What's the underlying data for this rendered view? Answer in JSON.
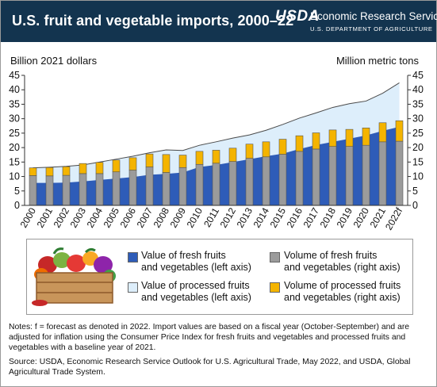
{
  "header": {
    "title": "U.S. fruit and vegetable imports, 2000–22",
    "agency_mark": "USDA",
    "agency_name": "Economic Research Service",
    "department": "U.S. DEPARTMENT OF AGRICULTURE",
    "bar_color": "#13344f"
  },
  "axes": {
    "left_label": "Billion 2021 dollars",
    "right_label": "Million metric tons"
  },
  "legend": {
    "fresh_value": "Value of fresh fruits and vegetables (left axis)",
    "processed_value": "Value of processed fruits and vegetables (left axis)",
    "fresh_volume": "Volume of fresh fruits and vegetables (right axis)",
    "processed_volume": "Volume of processed fruits and vegetables (right axis)",
    "fresh_value_line1": "Value of fresh fruits",
    "fresh_value_line2": "and vegetables (left axis)",
    "processed_value_line1": "Value of processed fruits",
    "processed_value_line2": "and vegetables (left axis)",
    "fresh_volume_line1": "Volume of fresh fruits",
    "fresh_volume_line2": "and vegetables (right axis)",
    "processed_volume_line1": "Volume of processed fruits",
    "processed_volume_line2": "and vegetables (right axis)"
  },
  "notes": {
    "note": "Notes: f = forecast as denoted in 2022. Import values are based on a fiscal year (October-September) and are adjusted for inflation using the Consumer Price Index for fresh fruits and vegetables and processed fruits and vegetables with a baseline year of 2021.",
    "source": "Source: USDA, Economic Research Service Outlook for U.S. Agricultural Trade, May 2022, and USDA, Global Agricultural Trade System."
  },
  "chart_data": {
    "type": "area",
    "title": "U.S. fruit and vegetable imports, 2000–22",
    "ylabel_left": "Billion 2021 dollars",
    "ylabel_right": "Million metric tons",
    "ylim_left": [
      0,
      45
    ],
    "ylim_right": [
      0,
      45
    ],
    "yticks": [
      0,
      5,
      10,
      15,
      20,
      25,
      30,
      35,
      40,
      45
    ],
    "categories": [
      "2000",
      "2001",
      "2002",
      "2003",
      "2004",
      "2005",
      "2006",
      "2007",
      "2008",
      "2009",
      "2010",
      "2011",
      "2012",
      "2013",
      "2014",
      "2015",
      "2016",
      "2017",
      "2018",
      "2019",
      "2020",
      "2021",
      "2022f"
    ],
    "colors": {
      "fresh_value": "#2e5cb8",
      "processed_value": "#ddeefb",
      "fresh_volume": "#9b9b9b",
      "processed_volume": "#f4b400"
    },
    "series": [
      {
        "name": "Value of fresh fruits and vegetables (left axis)",
        "kind": "area-stack",
        "axis": "left",
        "values": [
          7.8,
          7.8,
          7.9,
          8.3,
          8.8,
          9.3,
          9.8,
          10.6,
          10.9,
          11.4,
          13.3,
          14.0,
          15.0,
          16.0,
          17.0,
          17.9,
          19.5,
          20.9,
          22.0,
          23.1,
          24.2,
          25.8,
          27.2
        ]
      },
      {
        "name": "Value of processed fruits and vegetables (left axis)",
        "kind": "area-stack",
        "axis": "left",
        "values": [
          5.2,
          5.4,
          5.6,
          5.7,
          6.2,
          6.7,
          7.2,
          7.6,
          8.3,
          7.6,
          7.5,
          8.0,
          8.3,
          8.4,
          9.0,
          10.1,
          10.7,
          11.1,
          11.9,
          12.1,
          11.9,
          13.0,
          15.2
        ]
      },
      {
        "name": "Volume of fresh fruits and vegetables (right axis)",
        "kind": "bar-stack",
        "axis": "right",
        "values": [
          10.3,
          10.2,
          10.4,
          11.0,
          11.0,
          11.6,
          12.2,
          13.3,
          11.4,
          13.1,
          14.2,
          14.6,
          15.2,
          16.3,
          16.8,
          17.7,
          18.7,
          19.5,
          20.4,
          20.4,
          20.8,
          22.0,
          22.2
        ]
      },
      {
        "name": "Volume of processed fruits and vegetables (right axis)",
        "kind": "bar-stack",
        "axis": "right",
        "values": [
          2.7,
          2.9,
          3.0,
          3.5,
          3.9,
          4.1,
          4.3,
          4.5,
          6.2,
          4.3,
          4.5,
          4.5,
          4.6,
          4.9,
          5.2,
          5.2,
          5.4,
          5.6,
          5.7,
          5.9,
          6.0,
          6.6,
          7.1
        ]
      }
    ]
  }
}
